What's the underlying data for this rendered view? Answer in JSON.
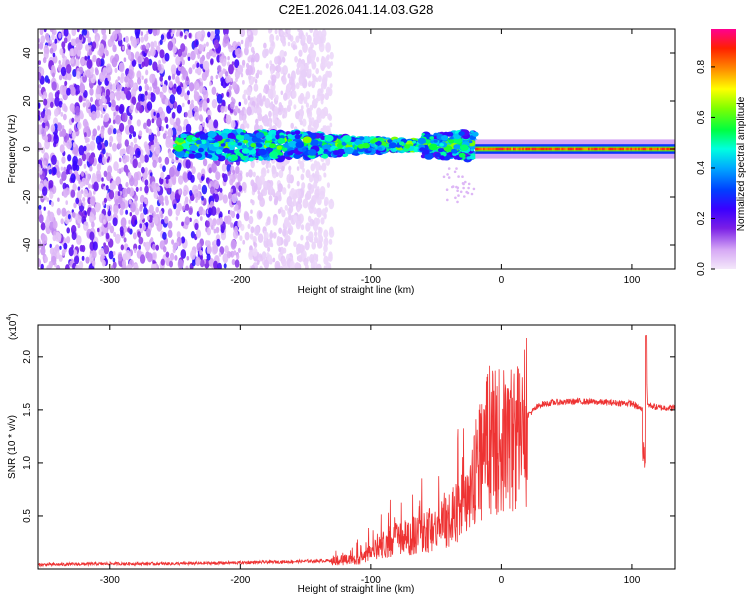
{
  "title": "C2E1.2026.041.14.03.G28",
  "chart_data": [
    {
      "type": "heatmap",
      "xlabel": "Height of straight line (km)",
      "ylabel": "Frequency (Hz)",
      "xlim": [
        -355,
        133
      ],
      "ylim": [
        -50,
        50
      ],
      "xticks": [
        -300,
        -200,
        -100,
        0,
        100
      ],
      "yticks": [
        -40,
        -20,
        0,
        20,
        40
      ],
      "colorbar": {
        "label": "Normalized spectral amplitude",
        "range": [
          0.0,
          0.95
        ],
        "ticks": [
          0.0,
          0.2,
          0.4,
          0.6,
          0.8
        ],
        "colormap": [
          "#f4e8fa",
          "#d6a8f5",
          "#7a1fe6",
          "#3a00ff",
          "#0040ff",
          "#00a8ff",
          "#00ffe0",
          "#00ff40",
          "#80ff00",
          "#ffff00",
          "#ff9000",
          "#ff2000",
          "#ff0090"
        ]
      },
      "description_regions": [
        {
          "x": [
            -355,
            -200
          ],
          "freq": [
            -50,
            50
          ],
          "amplitude": 0.15
        },
        {
          "x": [
            -200,
            -130
          ],
          "freq": [
            -50,
            50
          ],
          "amplitude": 0.06
        },
        {
          "x": [
            -250,
            -20
          ],
          "freq": [
            -8,
            10
          ],
          "amplitude": 0.45
        },
        {
          "x": [
            -20,
            133
          ],
          "freq": [
            -1,
            1
          ],
          "amplitude": 0.85
        }
      ]
    },
    {
      "type": "line",
      "xlabel": "Height of straight line (km)",
      "ylabel": "SNR (10 * v/v)",
      "multiplier_label": "(x10",
      "multiplier_exp": "4",
      "xlim": [
        -355,
        133
      ],
      "ylim": [
        0,
        2.3
      ],
      "xticks": [
        -300,
        -200,
        -100,
        0,
        100
      ],
      "yticks": [
        "0.5",
        "1.0",
        "1.5",
        "2.0"
      ],
      "series": [
        {
          "color": "#ee3333",
          "x": [
            -355,
            -300,
            -250,
            -200,
            -160,
            -130,
            -110,
            -100,
            -90,
            -80,
            -70,
            -60,
            -50,
            -40,
            -30,
            -20,
            -10,
            0,
            10,
            20,
            30,
            40,
            60,
            80,
            100,
            108,
            110,
            112,
            120,
            133
          ],
          "y": [
            0.04,
            0.05,
            0.05,
            0.06,
            0.07,
            0.08,
            0.1,
            0.15,
            0.25,
            0.3,
            0.32,
            0.35,
            0.45,
            0.5,
            0.65,
            1.0,
            1.3,
            1.25,
            1.3,
            1.45,
            1.55,
            1.57,
            1.58,
            1.57,
            1.56,
            1.5,
            2.2,
            1.55,
            1.52,
            1.52
          ]
        }
      ]
    }
  ]
}
